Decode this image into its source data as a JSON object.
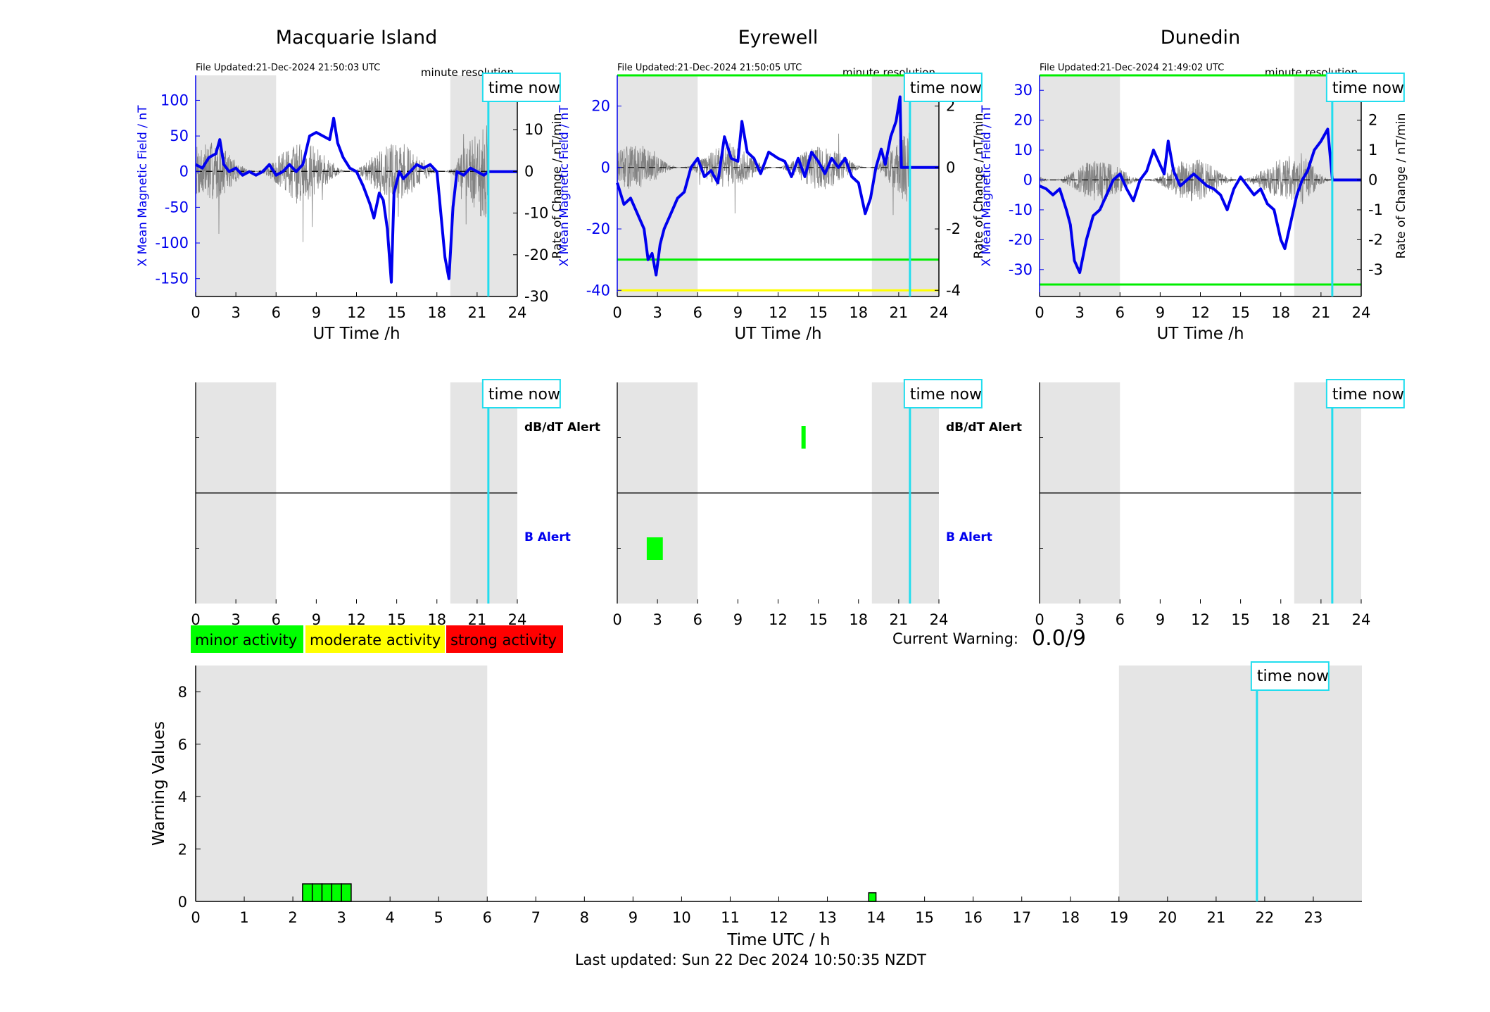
{
  "page": {
    "last_updated": "Last updated: Sun 22 Dec 2024 10:50:35 NZDT",
    "current_warning_label": "Current Warning:",
    "current_warning_value": "0.0/9",
    "time_now_label": "time now",
    "now_hour": 21.84,
    "night_bands": [
      [
        0,
        6
      ],
      [
        19,
        24
      ]
    ],
    "colors": {
      "field": "#0000ee",
      "rate": "#777777",
      "night": "#e5e5e5",
      "time_now": "#22ddee",
      "minor": "#00ff00",
      "moderate": "#ffff00",
      "strong": "#ff0000"
    }
  },
  "legend": {
    "minor": "minor activity",
    "moderate": "moderate activity",
    "strong": "strong activity"
  },
  "stations": [
    {
      "name": "Macquarie Island",
      "file_updated": "File Updated:21-Dec-2024 21:50:03 UTC",
      "resolution": "minute resolution",
      "ylabel_left": "X Mean Magnetic Field / nT",
      "ylabel_right": "Rate of Change / nT/min",
      "xlabel": "UT Time /h",
      "ylim_left": [
        -175,
        135
      ],
      "ylim_right": [
        -30,
        23
      ],
      "yticks_left": [
        100,
        50,
        0,
        -50,
        -100,
        -150
      ],
      "yticks_right": [
        20,
        10,
        0,
        -10,
        -20,
        -30
      ],
      "xticks": [
        0,
        3,
        6,
        9,
        12,
        15,
        18,
        21,
        24
      ],
      "thresholds": [],
      "rate_seed": 7,
      "rate_amp": 6,
      "field_series": [
        [
          0,
          10
        ],
        [
          0.5,
          5
        ],
        [
          1,
          20
        ],
        [
          1.5,
          25
        ],
        [
          1.8,
          45
        ],
        [
          2.1,
          10
        ],
        [
          2.5,
          0
        ],
        [
          3,
          5
        ],
        [
          3.5,
          -5
        ],
        [
          4,
          0
        ],
        [
          4.5,
          -5
        ],
        [
          5,
          0
        ],
        [
          5.5,
          10
        ],
        [
          6,
          -5
        ],
        [
          6.5,
          0
        ],
        [
          7,
          10
        ],
        [
          7.5,
          0
        ],
        [
          8,
          10
        ],
        [
          8.5,
          50
        ],
        [
          9,
          55
        ],
        [
          9.5,
          50
        ],
        [
          10,
          45
        ],
        [
          10.3,
          75
        ],
        [
          10.6,
          40
        ],
        [
          11,
          20
        ],
        [
          11.5,
          5
        ],
        [
          12,
          0
        ],
        [
          12.5,
          -20
        ],
        [
          13,
          -45
        ],
        [
          13.3,
          -65
        ],
        [
          13.7,
          -30
        ],
        [
          14,
          -40
        ],
        [
          14.3,
          -80
        ],
        [
          14.6,
          -155
        ],
        [
          14.8,
          -30
        ],
        [
          15.2,
          0
        ],
        [
          15.5,
          -10
        ],
        [
          16,
          0
        ],
        [
          16.5,
          10
        ],
        [
          17,
          5
        ],
        [
          17.5,
          10
        ],
        [
          18,
          0
        ],
        [
          18.3,
          -60
        ],
        [
          18.6,
          -120
        ],
        [
          18.9,
          -150
        ],
        [
          19.2,
          -50
        ],
        [
          19.5,
          0
        ],
        [
          20,
          -5
        ],
        [
          20.5,
          5
        ],
        [
          21,
          0
        ],
        [
          21.5,
          -5
        ],
        [
          21.85,
          0
        ],
        [
          24,
          0
        ]
      ],
      "alerts_dbdt": [],
      "alerts_b": []
    },
    {
      "name": "Eyrewell",
      "file_updated": "File Updated:21-Dec-2024 21:50:05 UTC",
      "resolution": "minute resolution",
      "ylabel_left": "X Mean Magnetic Field / nT",
      "ylabel_right": "Rate of Change / nT/min",
      "xlabel": "UT Time /h",
      "ylim_left": [
        -42,
        30
      ],
      "ylim_right": [
        -4.2,
        3
      ],
      "yticks_left": [
        20,
        0,
        -20,
        -40
      ],
      "yticks_right": [
        2,
        0,
        -2,
        -4
      ],
      "xticks": [
        0,
        3,
        6,
        9,
        12,
        15,
        18,
        21,
        24
      ],
      "thresholds": [
        {
          "axis": "left",
          "value": 30,
          "color": "#00ee00"
        },
        {
          "axis": "left",
          "value": -30,
          "color": "#00ee00"
        },
        {
          "axis": "left",
          "value": -40,
          "color": "#ffff00"
        }
      ],
      "rate_seed": 13,
      "rate_amp": 0.6,
      "field_series": [
        [
          0,
          -5
        ],
        [
          0.5,
          -12
        ],
        [
          1,
          -10
        ],
        [
          1.5,
          -15
        ],
        [
          2,
          -20
        ],
        [
          2.3,
          -30
        ],
        [
          2.6,
          -28
        ],
        [
          2.9,
          -35
        ],
        [
          3.2,
          -25
        ],
        [
          3.5,
          -20
        ],
        [
          4,
          -15
        ],
        [
          4.5,
          -10
        ],
        [
          5,
          -8
        ],
        [
          5.5,
          0
        ],
        [
          6,
          3
        ],
        [
          6.5,
          -3
        ],
        [
          7,
          -1
        ],
        [
          7.5,
          -5
        ],
        [
          8,
          10
        ],
        [
          8.5,
          3
        ],
        [
          9,
          2
        ],
        [
          9.3,
          15
        ],
        [
          9.7,
          5
        ],
        [
          10.2,
          3
        ],
        [
          10.7,
          -2
        ],
        [
          11.3,
          5
        ],
        [
          12,
          3
        ],
        [
          12.5,
          2
        ],
        [
          13,
          -3
        ],
        [
          13.5,
          3
        ],
        [
          14,
          -3
        ],
        [
          14.5,
          5
        ],
        [
          15,
          2
        ],
        [
          15.5,
          -2
        ],
        [
          16,
          3
        ],
        [
          16.5,
          0
        ],
        [
          17,
          3
        ],
        [
          17.5,
          -3
        ],
        [
          18,
          -5
        ],
        [
          18.5,
          -15
        ],
        [
          18.9,
          -10
        ],
        [
          19.3,
          0
        ],
        [
          19.7,
          6
        ],
        [
          20,
          1
        ],
        [
          20.4,
          10
        ],
        [
          20.8,
          15
        ],
        [
          21.1,
          23
        ],
        [
          21.2,
          0
        ],
        [
          24,
          0
        ]
      ],
      "alerts_dbdt": [
        [
          13.9,
          14.1
        ]
      ],
      "alerts_b": [
        [
          2.2,
          3.4
        ]
      ]
    },
    {
      "name": "Dunedin",
      "file_updated": "File Updated:21-Dec-2024 21:49:02 UTC",
      "resolution": "minute resolution",
      "ylabel_left": "X Mean Magnetic Field / nT",
      "ylabel_right": "Rate of Change / nT/min",
      "xlabel": "UT Time /h",
      "ylim_left": [
        -39,
        35
      ],
      "ylim_right": [
        -3.9,
        3.5
      ],
      "yticks_left": [
        30,
        20,
        10,
        0,
        -10,
        -20,
        -30
      ],
      "yticks_right": [
        3,
        2,
        1,
        0,
        -1,
        -2,
        -3
      ],
      "xticks": [
        0,
        3,
        6,
        9,
        12,
        15,
        18,
        21,
        24
      ],
      "thresholds": [
        {
          "axis": "left",
          "value": 35,
          "color": "#00ee00"
        },
        {
          "axis": "left",
          "value": -35,
          "color": "#00ee00"
        }
      ],
      "rate_seed": 29,
      "rate_amp": 0.6,
      "field_series": [
        [
          0,
          -2
        ],
        [
          0.5,
          -3
        ],
        [
          1,
          -5
        ],
        [
          1.5,
          -3
        ],
        [
          2,
          -10
        ],
        [
          2.3,
          -15
        ],
        [
          2.6,
          -27
        ],
        [
          3,
          -31
        ],
        [
          3.5,
          -20
        ],
        [
          4,
          -12
        ],
        [
          4.5,
          -10
        ],
        [
          5,
          -5
        ],
        [
          5.5,
          0
        ],
        [
          6,
          2
        ],
        [
          6.5,
          -3
        ],
        [
          7,
          -7
        ],
        [
          7.5,
          0
        ],
        [
          8,
          3
        ],
        [
          8.5,
          10
        ],
        [
          9,
          5
        ],
        [
          9.3,
          2
        ],
        [
          9.6,
          13
        ],
        [
          10,
          3
        ],
        [
          10.5,
          -2
        ],
        [
          11,
          0
        ],
        [
          11.5,
          2
        ],
        [
          12,
          0
        ],
        [
          12.5,
          -2
        ],
        [
          13,
          -3
        ],
        [
          13.5,
          -5
        ],
        [
          14,
          -10
        ],
        [
          14.5,
          -3
        ],
        [
          15,
          1
        ],
        [
          15.5,
          -2
        ],
        [
          16,
          -5
        ],
        [
          16.5,
          -3
        ],
        [
          17,
          -8
        ],
        [
          17.5,
          -10
        ],
        [
          18,
          -20
        ],
        [
          18.3,
          -23
        ],
        [
          18.7,
          -15
        ],
        [
          19.2,
          -5
        ],
        [
          19.6,
          0
        ],
        [
          20,
          3
        ],
        [
          20.5,
          10
        ],
        [
          21,
          13
        ],
        [
          21.5,
          17
        ],
        [
          21.85,
          0
        ],
        [
          24,
          0
        ]
      ],
      "alerts_dbdt": [],
      "alerts_b": []
    }
  ],
  "alert_labels": {
    "dbdt": "dB/dT Alert",
    "b": "B Alert"
  },
  "chart_data": {
    "type": "bar",
    "title": "",
    "xlabel": "Time UTC / h",
    "ylabel": "Warning Values",
    "xlim": [
      0,
      24
    ],
    "ylim": [
      0,
      9
    ],
    "xticks": [
      0,
      1,
      2,
      3,
      4,
      5,
      6,
      7,
      8,
      9,
      10,
      11,
      12,
      13,
      14,
      15,
      16,
      17,
      18,
      19,
      20,
      21,
      22,
      23
    ],
    "yticks": [
      0,
      2,
      4,
      6,
      8
    ],
    "bars": [
      {
        "start": 2.2,
        "end": 2.4,
        "value": 0.67
      },
      {
        "start": 2.4,
        "end": 2.6,
        "value": 0.67
      },
      {
        "start": 2.6,
        "end": 2.8,
        "value": 0.67
      },
      {
        "start": 2.8,
        "end": 3.0,
        "value": 0.67
      },
      {
        "start": 3.0,
        "end": 3.2,
        "value": 0.67
      },
      {
        "start": 13.85,
        "end": 14.0,
        "value": 0.33
      }
    ]
  }
}
